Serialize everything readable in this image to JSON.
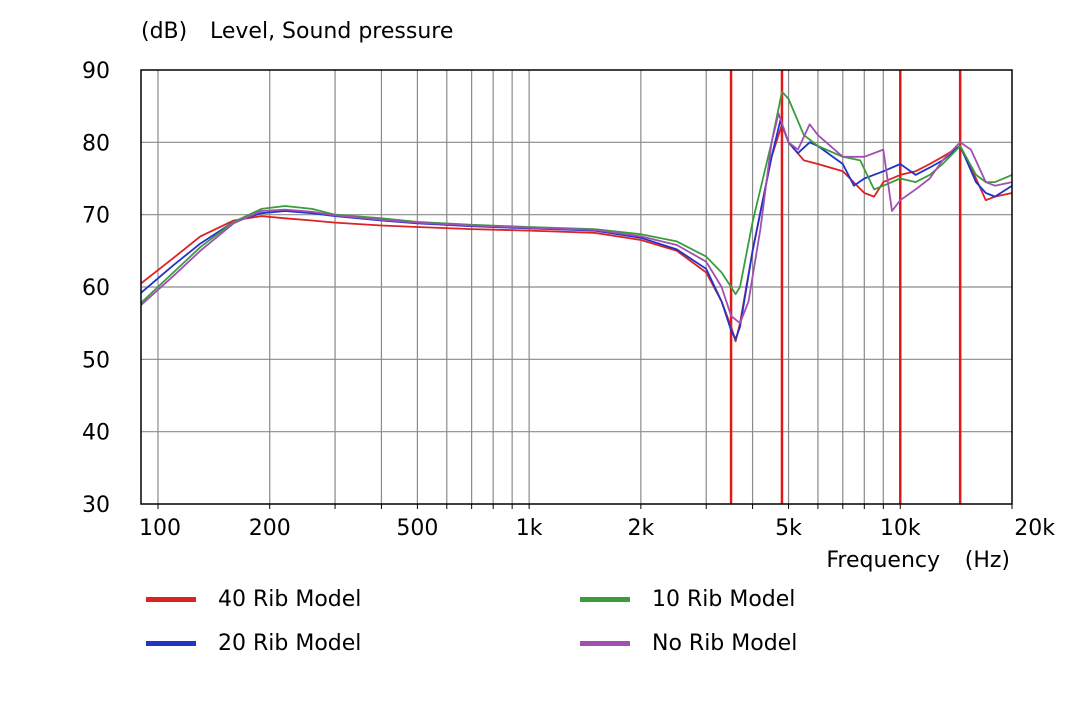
{
  "chart_data": {
    "type": "line",
    "title": "Level, Sound pressure",
    "ylabel": "(dB)",
    "xlabel": "Frequency",
    "xunit": "(Hz)",
    "xscale": "log",
    "xlim": [
      90,
      20000
    ],
    "ylim": [
      30,
      90
    ],
    "yticks": [
      30,
      40,
      50,
      60,
      70,
      80,
      90
    ],
    "ytick_labels": [
      "30",
      "40",
      "50",
      "60",
      "70",
      "80",
      "90"
    ],
    "xticks": [
      100,
      200,
      500,
      1000,
      2000,
      5000,
      10000,
      20000
    ],
    "xtick_labels": [
      "100",
      "200",
      "500",
      "1k",
      "2k",
      "5k",
      "10k",
      "20k"
    ],
    "grid": true,
    "markers": [
      3500,
      4800,
      10000,
      14500
    ],
    "marker_color": "#e01818",
    "series": [
      {
        "name": "40 Rib Model",
        "color": "#dd2222",
        "points": [
          [
            90,
            60.5
          ],
          [
            110,
            64
          ],
          [
            130,
            67
          ],
          [
            160,
            69.2
          ],
          [
            190,
            69.8
          ],
          [
            220,
            69.5
          ],
          [
            260,
            69.2
          ],
          [
            300,
            68.9
          ],
          [
            400,
            68.5
          ],
          [
            500,
            68.3
          ],
          [
            700,
            68
          ],
          [
            1000,
            67.8
          ],
          [
            1500,
            67.5
          ],
          [
            2000,
            66.5
          ],
          [
            2500,
            65
          ],
          [
            3000,
            62
          ],
          [
            3300,
            58
          ],
          [
            3500,
            54.5
          ],
          [
            3600,
            52.5
          ],
          [
            3700,
            55
          ],
          [
            4000,
            65
          ],
          [
            4500,
            78
          ],
          [
            4800,
            82.5
          ],
          [
            5000,
            80
          ],
          [
            5500,
            77.5
          ],
          [
            6000,
            77
          ],
          [
            7000,
            76
          ],
          [
            8000,
            73
          ],
          [
            8500,
            72.5
          ],
          [
            9000,
            74.5
          ],
          [
            10000,
            75.5
          ],
          [
            11000,
            76
          ],
          [
            12000,
            77
          ],
          [
            13000,
            78
          ],
          [
            14500,
            79.5
          ],
          [
            16000,
            75
          ],
          [
            17000,
            72
          ],
          [
            18000,
            72.5
          ],
          [
            20000,
            73
          ]
        ]
      },
      {
        "name": "20 Rib Model",
        "color": "#2233cc",
        "points": [
          [
            90,
            59.2
          ],
          [
            110,
            63
          ],
          [
            130,
            66
          ],
          [
            160,
            69
          ],
          [
            190,
            70.2
          ],
          [
            220,
            70.5
          ],
          [
            260,
            70.2
          ],
          [
            300,
            69.8
          ],
          [
            400,
            69.2
          ],
          [
            500,
            68.8
          ],
          [
            700,
            68.4
          ],
          [
            1000,
            68.1
          ],
          [
            1500,
            67.8
          ],
          [
            2000,
            66.8
          ],
          [
            2500,
            65.2
          ],
          [
            3000,
            62.5
          ],
          [
            3300,
            58
          ],
          [
            3500,
            54
          ],
          [
            3600,
            52.8
          ],
          [
            3700,
            54.5
          ],
          [
            4000,
            65
          ],
          [
            4500,
            78
          ],
          [
            4750,
            83
          ],
          [
            5000,
            80
          ],
          [
            5300,
            78.5
          ],
          [
            5700,
            80
          ],
          [
            6000,
            79.5
          ],
          [
            7000,
            77
          ],
          [
            7500,
            74
          ],
          [
            8000,
            75
          ],
          [
            9000,
            76
          ],
          [
            10000,
            77
          ],
          [
            11000,
            75.5
          ],
          [
            12000,
            76.5
          ],
          [
            13000,
            77.5
          ],
          [
            14500,
            79.5
          ],
          [
            16000,
            74.5
          ],
          [
            17000,
            73
          ],
          [
            18000,
            72.5
          ],
          [
            20000,
            74
          ]
        ]
      },
      {
        "name": "10 Rib Model",
        "color": "#3c9c3c",
        "points": [
          [
            90,
            57.8
          ],
          [
            110,
            62
          ],
          [
            130,
            65.5
          ],
          [
            160,
            69
          ],
          [
            190,
            70.8
          ],
          [
            220,
            71.2
          ],
          [
            260,
            70.8
          ],
          [
            300,
            70
          ],
          [
            400,
            69.5
          ],
          [
            500,
            69
          ],
          [
            700,
            68.6
          ],
          [
            1000,
            68.3
          ],
          [
            1500,
            68
          ],
          [
            2000,
            67.3
          ],
          [
            2500,
            66.3
          ],
          [
            3000,
            64.2
          ],
          [
            3300,
            62
          ],
          [
            3500,
            60
          ],
          [
            3600,
            59
          ],
          [
            3700,
            60
          ],
          [
            4000,
            69
          ],
          [
            4500,
            80
          ],
          [
            4800,
            87
          ],
          [
            5000,
            86
          ],
          [
            5500,
            81
          ],
          [
            6000,
            79.5
          ],
          [
            7000,
            78
          ],
          [
            7800,
            77.5
          ],
          [
            8500,
            73.5
          ],
          [
            9000,
            74
          ],
          [
            10000,
            75
          ],
          [
            11000,
            74.5
          ],
          [
            12000,
            75.5
          ],
          [
            13000,
            77
          ],
          [
            14500,
            79.5
          ],
          [
            16000,
            75.5
          ],
          [
            17000,
            74.5
          ],
          [
            18000,
            74.5
          ],
          [
            20000,
            75.5
          ]
        ]
      },
      {
        "name": "No Rib Model",
        "color": "#a050b0",
        "points": [
          [
            90,
            57.5
          ],
          [
            110,
            61.5
          ],
          [
            130,
            65
          ],
          [
            160,
            68.8
          ],
          [
            190,
            70.5
          ],
          [
            220,
            70.7
          ],
          [
            260,
            70.4
          ],
          [
            300,
            69.9
          ],
          [
            400,
            69.3
          ],
          [
            500,
            68.9
          ],
          [
            700,
            68.5
          ],
          [
            1000,
            68.2
          ],
          [
            1500,
            67.9
          ],
          [
            2000,
            67
          ],
          [
            2500,
            65.8
          ],
          [
            3000,
            63.5
          ],
          [
            3300,
            60
          ],
          [
            3500,
            56
          ],
          [
            3700,
            55
          ],
          [
            3900,
            58
          ],
          [
            4200,
            68
          ],
          [
            4500,
            80
          ],
          [
            4700,
            84
          ],
          [
            5000,
            80
          ],
          [
            5300,
            79
          ],
          [
            5700,
            82.5
          ],
          [
            6000,
            81
          ],
          [
            7000,
            78
          ],
          [
            8000,
            78
          ],
          [
            9000,
            79
          ],
          [
            9500,
            70.5
          ],
          [
            10000,
            72
          ],
          [
            11000,
            73.5
          ],
          [
            12000,
            75
          ],
          [
            13000,
            77.5
          ],
          [
            14500,
            80
          ],
          [
            15500,
            79
          ],
          [
            17000,
            74.5
          ],
          [
            18000,
            74
          ],
          [
            20000,
            74.5
          ]
        ]
      }
    ]
  },
  "legend": {
    "items": [
      {
        "label": "40 Rib Model",
        "color": "#dd2222"
      },
      {
        "label": "10 Rib Model",
        "color": "#3c9c3c"
      },
      {
        "label": "20 Rib Model",
        "color": "#2233cc"
      },
      {
        "label": "No Rib Model",
        "color": "#a050b0"
      }
    ]
  }
}
